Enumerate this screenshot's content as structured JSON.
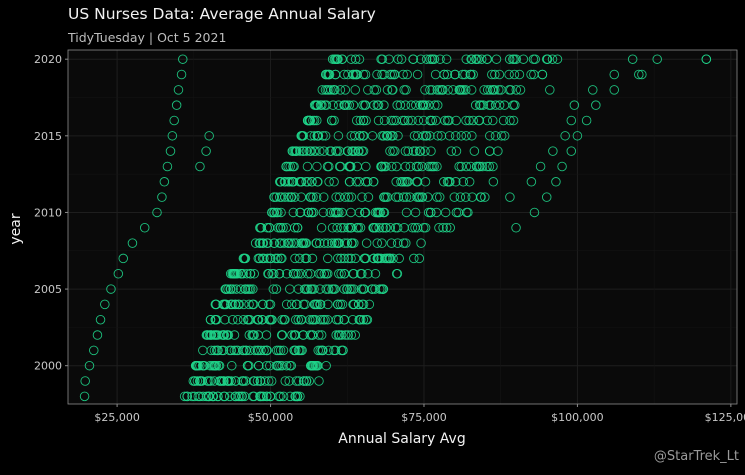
{
  "header": {
    "title": "US Nurses Data: Average Annual Salary",
    "subtitle": "TidyTuesday | Oct 5 2021"
  },
  "caption": "@StarTrek_Lt",
  "colors": {
    "background": "#000000",
    "panel": "#0a0a0a",
    "grid": "#1e1e1e",
    "points": "#1fd48a"
  },
  "chart_data": {
    "type": "scatter",
    "xlabel": "Annual Salary Avg",
    "ylabel": "year",
    "xlim": [
      17000,
      126000
    ],
    "ylim": [
      1997.5,
      2020.6
    ],
    "x_ticks": [
      25000,
      50000,
      75000,
      100000,
      125000
    ],
    "x_tick_labels": [
      "$25,000",
      "$50,000",
      "$75,000",
      "$100,000",
      "$125,000"
    ],
    "y_ticks": [
      2000,
      2005,
      2010,
      2015,
      2020
    ],
    "y_tick_labels": [
      "2000",
      "2005",
      "2010",
      "2015",
      "2020"
    ],
    "grid": true,
    "marker": "open-circle",
    "years": [
      1998,
      1999,
      2000,
      2001,
      2002,
      2003,
      2004,
      2005,
      2006,
      2007,
      2008,
      2009,
      2010,
      2011,
      2012,
      2013,
      2014,
      2015,
      2016,
      2017,
      2018,
      2019,
      2020
    ],
    "salary_band": {
      "bulk_min": [
        36000,
        37000,
        37800,
        38800,
        39500,
        40200,
        41000,
        42200,
        43500,
        45500,
        47000,
        48000,
        50000,
        50500,
        51500,
        52500,
        53500,
        55000,
        56000,
        57000,
        58000,
        59000,
        60000
      ],
      "bulk_max": [
        56500,
        58000,
        60000,
        62000,
        64000,
        66000,
        68000,
        70000,
        72000,
        74500,
        77000,
        79500,
        83000,
        85000,
        86500,
        87500,
        88500,
        89500,
        90500,
        91500,
        93000,
        95000,
        98000
      ],
      "low_outliers": [
        19700,
        19800,
        20500,
        21200,
        21800,
        22300,
        23000,
        24000,
        25200,
        26000,
        27500,
        29500,
        31500,
        32300,
        32700,
        33200,
        33700,
        34000,
        34300,
        34700,
        35000,
        35500,
        35700
      ],
      "high_outliers": [
        null,
        null,
        null,
        null,
        null,
        null,
        null,
        null,
        null,
        null,
        null,
        90000,
        93000,
        95000,
        96500,
        97500,
        99000,
        100000,
        101500,
        103000,
        106000,
        110000,
        121000
      ]
    },
    "points": [
      {
        "year": 2020,
        "x": 121000
      },
      {
        "year": 2020,
        "x": 113000
      },
      {
        "year": 2020,
        "x": 109000
      },
      {
        "year": 2019,
        "x": 106000
      },
      {
        "year": 2019,
        "x": 110500
      },
      {
        "year": 2018,
        "x": 102500
      },
      {
        "year": 2018,
        "x": 95500
      },
      {
        "year": 2017,
        "x": 99500
      },
      {
        "year": 2016,
        "x": 99000
      },
      {
        "year": 2015,
        "x": 98000
      },
      {
        "year": 2014,
        "x": 96000
      },
      {
        "year": 2013,
        "x": 94000
      },
      {
        "year": 2012,
        "x": 92500
      },
      {
        "year": 2011,
        "x": 89000
      },
      {
        "year": 2015,
        "x": 40000
      },
      {
        "year": 2014,
        "x": 39500
      },
      {
        "year": 2013,
        "x": 38500
      }
    ]
  }
}
